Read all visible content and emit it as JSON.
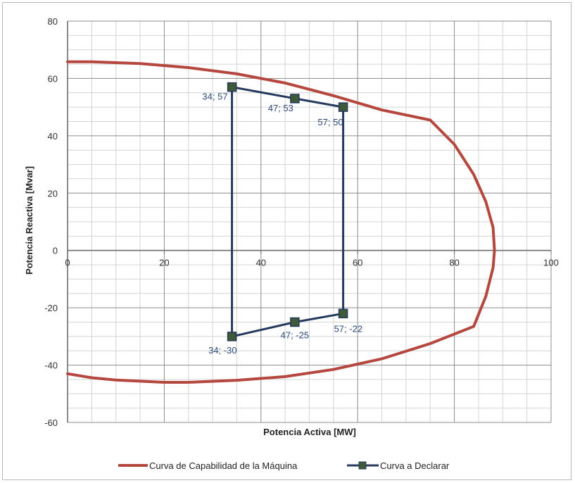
{
  "chart_data": {
    "type": "scatter",
    "xlabel": "Potencia Activa [MW]",
    "ylabel": "Potencia Reactiva [Mvar]",
    "xlim": [
      0,
      100
    ],
    "ylim": [
      -60,
      80
    ],
    "x_ticks": [
      0,
      20,
      40,
      60,
      80,
      100
    ],
    "y_ticks": [
      80,
      60,
      40,
      20,
      0,
      -20,
      -40,
      -60
    ],
    "grid": true,
    "legend_position": "bottom",
    "series": [
      {
        "name": "Curva de Capabilidad de la Máquina",
        "color": "#b5473f",
        "marker": "none",
        "points": [
          [
            0,
            65.8
          ],
          [
            5,
            65.8
          ],
          [
            15,
            65.2
          ],
          [
            25,
            63.8
          ],
          [
            35,
            61.6
          ],
          [
            45,
            58.4
          ],
          [
            55,
            54.0
          ],
          [
            65,
            49.0
          ],
          [
            75,
            45.5
          ],
          [
            80,
            37.0
          ],
          [
            84,
            26.5
          ],
          [
            86.5,
            17.0
          ],
          [
            88,
            8.0
          ],
          [
            88.3,
            0
          ],
          [
            88,
            -6.0
          ],
          [
            86.5,
            -16.0
          ],
          [
            84,
            -26.5
          ],
          [
            75,
            -32.5
          ],
          [
            65,
            -37.8
          ],
          [
            55,
            -41.5
          ],
          [
            45,
            -44.0
          ],
          [
            35,
            -45.3
          ],
          [
            25,
            -46.0
          ],
          [
            20,
            -46.0
          ],
          [
            10,
            -45.2
          ],
          [
            5,
            -44.4
          ],
          [
            0,
            -43.0
          ]
        ]
      },
      {
        "name": "Curva a Declarar",
        "color": "#253a5e",
        "marker": "square",
        "marker_color": "#3f5a36",
        "points": [
          [
            34,
            57
          ],
          [
            47,
            53
          ],
          [
            57,
            50
          ],
          [
            57,
            -22
          ],
          [
            47,
            -25
          ],
          [
            34,
            -30
          ],
          [
            34,
            57
          ]
        ],
        "labels": [
          {
            "text": "34; 57",
            "x": 34,
            "y": 57,
            "anchor": "end",
            "dx": -6,
            "dy": 18
          },
          {
            "text": "47; 53",
            "x": 47,
            "y": 53,
            "anchor": "end",
            "dx": -2,
            "dy": 18
          },
          {
            "text": "57; 50",
            "x": 57,
            "y": 50,
            "anchor": "end",
            "dx": 0,
            "dy": 26
          },
          {
            "text": "57; -22",
            "x": 57,
            "y": -22,
            "anchor": "start",
            "dx": -13,
            "dy": 26
          },
          {
            "text": "47; -25",
            "x": 47,
            "y": -25,
            "anchor": "middle",
            "dx": 0,
            "dy": 23
          },
          {
            "text": "34; -30",
            "x": 34,
            "y": -30,
            "anchor": "end",
            "dx": 7,
            "dy": 24
          }
        ]
      }
    ]
  }
}
